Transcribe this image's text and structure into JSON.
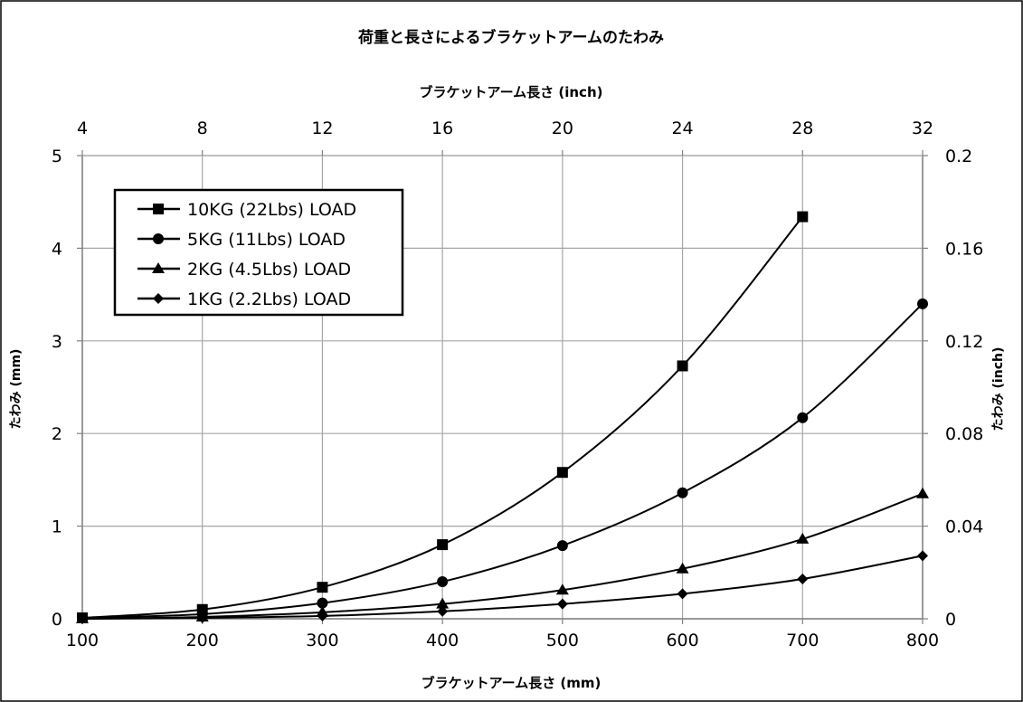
{
  "chart_data": {
    "type": "line",
    "title": "荷重と長さによるブラケットアームのたわみ",
    "xlabel": "ブラケットアーム長さ (mm)",
    "x2label": "ブラケットアーム長さ (inch)",
    "ylabel": "たわみ (mm)",
    "y2label": "たわみ (inch)",
    "xlim": [
      100,
      800
    ],
    "ylim": [
      0,
      5
    ],
    "x2lim": [
      4,
      32
    ],
    "y2lim": [
      0,
      0.2
    ],
    "x_ticks": [
      "100",
      "200",
      "300",
      "400",
      "500",
      "600",
      "700",
      "800"
    ],
    "y_ticks": [
      "0",
      "1",
      "2",
      "3",
      "4",
      "5"
    ],
    "x2_ticks": [
      "4",
      "8",
      "12",
      "16",
      "20",
      "24",
      "28",
      "32"
    ],
    "y2_ticks": [
      "0",
      "0.04",
      "0.08",
      "0.12",
      "0.16",
      "0.2"
    ],
    "grid": true,
    "legend_position": "top-left",
    "series": [
      {
        "name": "10KG (22Lbs) LOAD",
        "marker": "square",
        "x": [
          100,
          200,
          300,
          400,
          500,
          600,
          700
        ],
        "y": [
          0.01,
          0.1,
          0.34,
          0.8,
          1.58,
          2.73,
          4.34
        ]
      },
      {
        "name": "5KG (11Lbs) LOAD",
        "marker": "circle",
        "x": [
          100,
          200,
          300,
          400,
          500,
          600,
          700,
          800
        ],
        "y": [
          0.01,
          0.05,
          0.17,
          0.4,
          0.79,
          1.36,
          2.17,
          3.4
        ]
      },
      {
        "name": "2KG (4.5Lbs) LOAD",
        "marker": "triangle",
        "x": [
          100,
          200,
          300,
          400,
          500,
          600,
          700,
          800
        ],
        "y": [
          0.0,
          0.02,
          0.07,
          0.16,
          0.31,
          0.54,
          0.86,
          1.35
        ]
      },
      {
        "name": "1KG (2.2Lbs) LOAD",
        "marker": "diamond",
        "x": [
          100,
          200,
          300,
          400,
          500,
          600,
          700,
          800
        ],
        "y": [
          0.0,
          0.01,
          0.03,
          0.08,
          0.16,
          0.27,
          0.43,
          0.68
        ]
      }
    ]
  }
}
